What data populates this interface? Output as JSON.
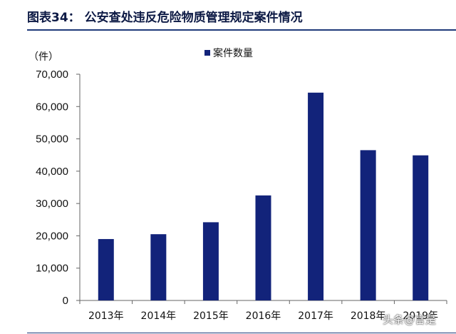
{
  "header": {
    "title": "图表34：  公安查处违反危险物质管理规定案件情况"
  },
  "watermark": "头条@言是",
  "chart_data": {
    "type": "bar",
    "title": "",
    "unit_label": "（件）",
    "categories": [
      "2013年",
      "2014年",
      "2015年",
      "2016年",
      "2017年",
      "2018年",
      "2019年"
    ],
    "series": [
      {
        "name": "案件数量",
        "values": [
          19000,
          20500,
          24200,
          32500,
          64300,
          46500,
          44900
        ],
        "color": "#12237a"
      }
    ],
    "ylim": [
      0,
      70000
    ],
    "yticks": [
      "0",
      "10,000",
      "20,000",
      "30,000",
      "40,000",
      "50,000",
      "60,000",
      "70,000"
    ],
    "grid": false,
    "legend": "top"
  }
}
